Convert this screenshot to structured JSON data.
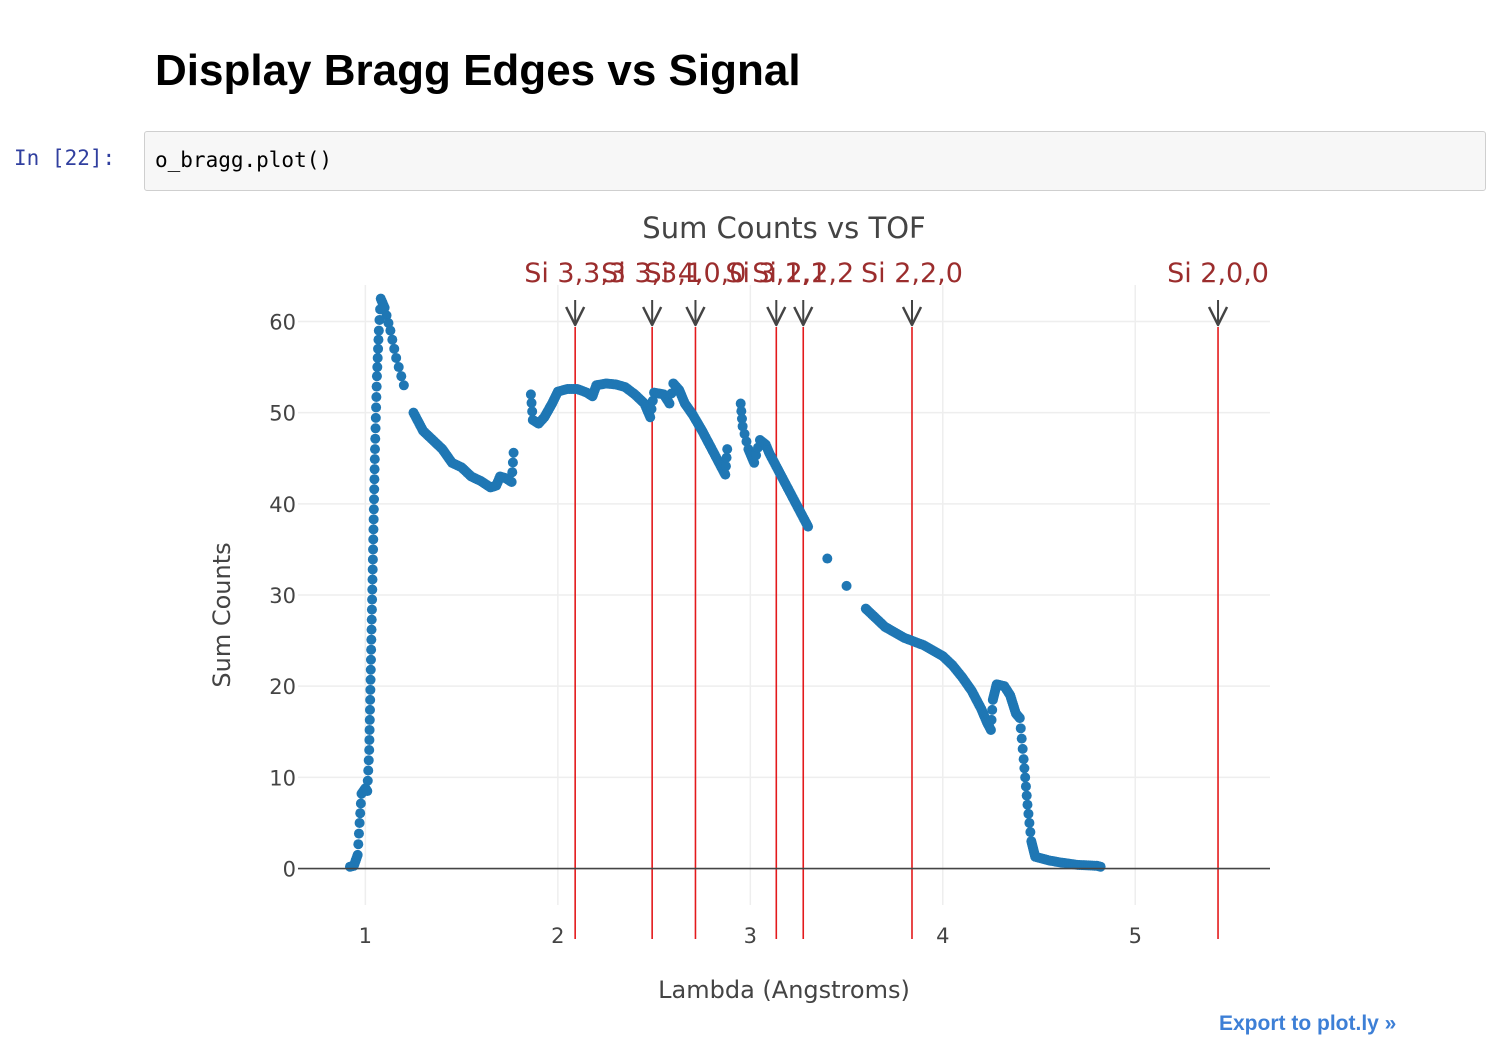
{
  "heading": "Display Bragg Edges vs Signal",
  "cell": {
    "prompt": "In [22]:",
    "code": "o_bragg.plot()"
  },
  "export_link": "Export to plot.ly »",
  "colors": {
    "series": "#1f77b4",
    "edges": "#e31a1c",
    "annotation": "#9b2d2d",
    "arrow": "#444444"
  },
  "chart_data": {
    "type": "scatter",
    "title": "Sum Counts vs TOF",
    "xlabel": "Lambda (Angstroms)",
    "ylabel": "Sum Counts",
    "xlim": [
      0.65,
      5.7
    ],
    "ylim": [
      -4,
      64
    ],
    "xticks": [
      1,
      2,
      3,
      4,
      5
    ],
    "yticks": [
      0,
      10,
      20,
      30,
      40,
      50,
      60
    ],
    "grid": true,
    "series": [
      {
        "points": [
          [
            0.92,
            0.2
          ],
          [
            0.94,
            0.3
          ],
          [
            0.96,
            1.5
          ],
          [
            0.97,
            5
          ],
          [
            0.98,
            8.2
          ],
          [
            1.0,
            8.8
          ],
          [
            1.01,
            8.5
          ],
          [
            1.02,
            13
          ],
          [
            1.03,
            24
          ],
          [
            1.04,
            35
          ],
          [
            1.05,
            46
          ],
          [
            1.06,
            54
          ],
          [
            1.07,
            59
          ],
          [
            1.08,
            62.5
          ],
          [
            1.1,
            61.5
          ],
          [
            1.13,
            59
          ],
          [
            1.16,
            56
          ],
          [
            1.2,
            53
          ],
          [
            1.25,
            50
          ],
          [
            1.3,
            48
          ],
          [
            1.35,
            47
          ],
          [
            1.4,
            46
          ],
          [
            1.45,
            44.5
          ],
          [
            1.5,
            44
          ],
          [
            1.55,
            43
          ],
          [
            1.6,
            42.5
          ],
          [
            1.65,
            41.8
          ],
          [
            1.68,
            42
          ],
          [
            1.7,
            43
          ],
          [
            1.73,
            42.8
          ],
          [
            1.76,
            42.4
          ],
          [
            1.77,
            45.6
          ],
          [
            1.86,
            52
          ],
          [
            1.87,
            49.2
          ],
          [
            1.9,
            48.8
          ],
          [
            1.93,
            49.5
          ],
          [
            1.97,
            51
          ],
          [
            2.0,
            52.3
          ],
          [
            2.05,
            52.6
          ],
          [
            2.1,
            52.6
          ],
          [
            2.15,
            52.2
          ],
          [
            2.18,
            51.8
          ],
          [
            2.2,
            53
          ],
          [
            2.25,
            53.2
          ],
          [
            2.3,
            53.1
          ],
          [
            2.35,
            52.8
          ],
          [
            2.4,
            52
          ],
          [
            2.45,
            51
          ],
          [
            2.48,
            49.5
          ],
          [
            2.5,
            52.2
          ],
          [
            2.55,
            52
          ],
          [
            2.58,
            51
          ],
          [
            2.6,
            53.2
          ],
          [
            2.63,
            52.5
          ],
          [
            2.66,
            51
          ],
          [
            2.7,
            49.8
          ],
          [
            2.75,
            48
          ],
          [
            2.8,
            46
          ],
          [
            2.85,
            44
          ],
          [
            2.87,
            43.2
          ],
          [
            2.88,
            46
          ],
          [
            2.95,
            51
          ],
          [
            2.96,
            48.5
          ],
          [
            2.99,
            46
          ],
          [
            3.02,
            44.5
          ],
          [
            3.05,
            47
          ],
          [
            3.08,
            46.5
          ],
          [
            3.1,
            45.5
          ],
          [
            3.15,
            43.5
          ],
          [
            3.2,
            41.5
          ],
          [
            3.25,
            39.5
          ],
          [
            3.3,
            37.5
          ],
          [
            3.4,
            34
          ],
          [
            3.5,
            31
          ],
          [
            3.6,
            28.5
          ],
          [
            3.7,
            26.5
          ],
          [
            3.8,
            25.3
          ],
          [
            3.9,
            24.5
          ],
          [
            4.0,
            23.3
          ],
          [
            4.05,
            22.3
          ],
          [
            4.1,
            21
          ],
          [
            4.15,
            19.5
          ],
          [
            4.2,
            17.5
          ],
          [
            4.23,
            16
          ],
          [
            4.25,
            15.2
          ],
          [
            4.26,
            18.5
          ],
          [
            4.28,
            20.2
          ],
          [
            4.32,
            20
          ],
          [
            4.35,
            19
          ],
          [
            4.38,
            17
          ],
          [
            4.4,
            16.5
          ],
          [
            4.42,
            12
          ],
          [
            4.44,
            7
          ],
          [
            4.46,
            3
          ],
          [
            4.48,
            1.3
          ],
          [
            4.55,
            0.9
          ],
          [
            4.6,
            0.7
          ],
          [
            4.7,
            0.4
          ],
          [
            4.8,
            0.3
          ],
          [
            4.82,
            0.2
          ]
        ]
      }
    ],
    "edges": [
      {
        "label": "Si 3,3,3",
        "x": 2.09
      },
      {
        "label": "Si 3,3,1",
        "x": 2.49
      },
      {
        "label": "Si 4,0,0",
        "x": 2.715
      },
      {
        "label": "Si 3,1,1",
        "x": 3.135
      },
      {
        "label": "Si 2,2,2",
        "x": 3.275
      },
      {
        "label": "Si 2,2,0",
        "x": 3.84
      },
      {
        "label": "Si 2,0,0",
        "x": 5.43
      }
    ]
  }
}
